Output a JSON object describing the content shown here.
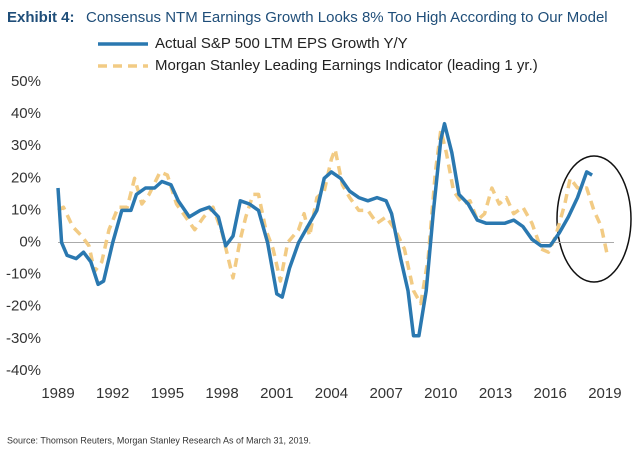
{
  "chart_data": {
    "type": "line",
    "title_prefix": "Exhibit 4:",
    "title": "Consensus NTM Earnings Growth Looks 8% Too High According to Our Model",
    "source": "Source: Thomson Reuters, Morgan Stanley Research As of March 31, 2019.",
    "xlim": [
      1989,
      2019.5
    ],
    "xticks": [
      1989,
      1992,
      1995,
      1998,
      2001,
      2004,
      2007,
      2010,
      2013,
      2016,
      2019
    ],
    "ylim": [
      -40,
      50
    ],
    "yticks": [
      {
        "value": -40,
        "label": "-40%"
      },
      {
        "value": -30,
        "label": "-30%"
      },
      {
        "value": -20,
        "label": "-20%"
      },
      {
        "value": -10,
        "label": "-10%"
      },
      {
        "value": 0,
        "label": "0%"
      },
      {
        "value": 10,
        "label": "10%"
      },
      {
        "value": 20,
        "label": "20%"
      },
      {
        "value": 30,
        "label": "30%"
      },
      {
        "value": 40,
        "label": "40%"
      },
      {
        "value": 50,
        "label": "50%"
      }
    ],
    "series": [
      {
        "name": "Actual S&P 500 LTM EPS Growth Y/Y",
        "color": "#2a78b0",
        "line_style": "solid",
        "x": [
          1989.0,
          1989.2,
          1989.5,
          1990.0,
          1990.4,
          1990.8,
          1991.2,
          1991.5,
          1992.0,
          1992.5,
          1993.0,
          1993.3,
          1993.8,
          1994.3,
          1994.7,
          1995.2,
          1995.6,
          1996.2,
          1996.8,
          1997.3,
          1997.8,
          1998.2,
          1998.6,
          1999.0,
          1999.5,
          2000.0,
          2000.5,
          2001.0,
          2001.3,
          2001.7,
          2002.2,
          2002.7,
          2003.2,
          2003.6,
          2004.0,
          2004.5,
          2005.0,
          2005.5,
          2006.0,
          2006.5,
          2007.0,
          2007.3,
          2007.8,
          2008.2,
          2008.5,
          2008.8,
          2009.2,
          2009.6,
          2010.0,
          2010.2,
          2010.6,
          2011.0,
          2011.5,
          2012.0,
          2012.5,
          2013.0,
          2013.5,
          2014.0,
          2014.5,
          2015.0,
          2015.5,
          2016.0,
          2016.5,
          2017.0,
          2017.5,
          2018.0,
          2018.3
        ],
        "values": [
          17,
          0,
          -4,
          -5,
          -3,
          -6,
          -13,
          -12,
          0,
          10,
          10,
          15,
          17,
          17,
          19,
          18,
          13,
          8,
          10,
          11,
          8,
          -1,
          2,
          13,
          12,
          10,
          0,
          -16,
          -17,
          -8,
          0,
          5,
          10,
          20,
          22,
          20,
          16,
          14,
          13,
          14,
          13,
          9,
          -5,
          -15,
          -29,
          -29,
          -15,
          10,
          32,
          37,
          28,
          15,
          12,
          7,
          6,
          6,
          6,
          7,
          5,
          1,
          -1,
          -1,
          3,
          8,
          14,
          22,
          21
        ]
      },
      {
        "name": "Morgan Stanley Leading Earnings Indicator (leading 1 yr.)",
        "color": "#f2cb84",
        "line_style": "dashed",
        "x": [
          1989.0,
          1989.3,
          1989.8,
          1990.3,
          1990.7,
          1991.0,
          1991.4,
          1991.8,
          1992.3,
          1992.8,
          1993.2,
          1993.6,
          1994.0,
          1994.6,
          1995.0,
          1995.5,
          1996.0,
          1996.5,
          1997.0,
          1997.5,
          1998.0,
          1998.6,
          1999.0,
          1999.3,
          1999.7,
          2000.0,
          2000.4,
          2000.8,
          2001.2,
          2001.6,
          2002.2,
          2002.5,
          2002.8,
          2003.2,
          2003.6,
          2004.0,
          2004.2,
          2004.6,
          2005.0,
          2005.5,
          2006.0,
          2006.5,
          2007.0,
          2007.5,
          2008.0,
          2008.5,
          2008.9,
          2009.3,
          2009.7,
          2010.0,
          2010.3,
          2010.7,
          2011.2,
          2011.6,
          2012.0,
          2012.4,
          2012.8,
          2013.2,
          2013.6,
          2014.0,
          2014.5,
          2015.0,
          2015.5,
          2015.9,
          2016.3,
          2016.8,
          2017.1,
          2017.5,
          2018.0,
          2018.4,
          2018.8,
          2019.1
        ],
        "values": [
          10,
          11,
          5,
          2,
          -1,
          -9,
          -6,
          4,
          11,
          11,
          20,
          12,
          15,
          22,
          21,
          12,
          8,
          4,
          8,
          11,
          3,
          -11,
          1,
          8,
          15,
          15,
          4,
          -2,
          -12,
          0,
          4,
          9,
          2,
          14,
          16,
          26,
          29,
          18,
          14,
          10,
          10,
          6,
          8,
          4,
          -2,
          -15,
          -19,
          -5,
          22,
          35,
          28,
          16,
          12,
          13,
          7,
          9,
          17,
          12,
          14,
          9,
          11,
          6,
          -2,
          -3,
          2,
          12,
          20,
          17,
          17,
          10,
          5,
          -3
        ]
      }
    ]
  }
}
